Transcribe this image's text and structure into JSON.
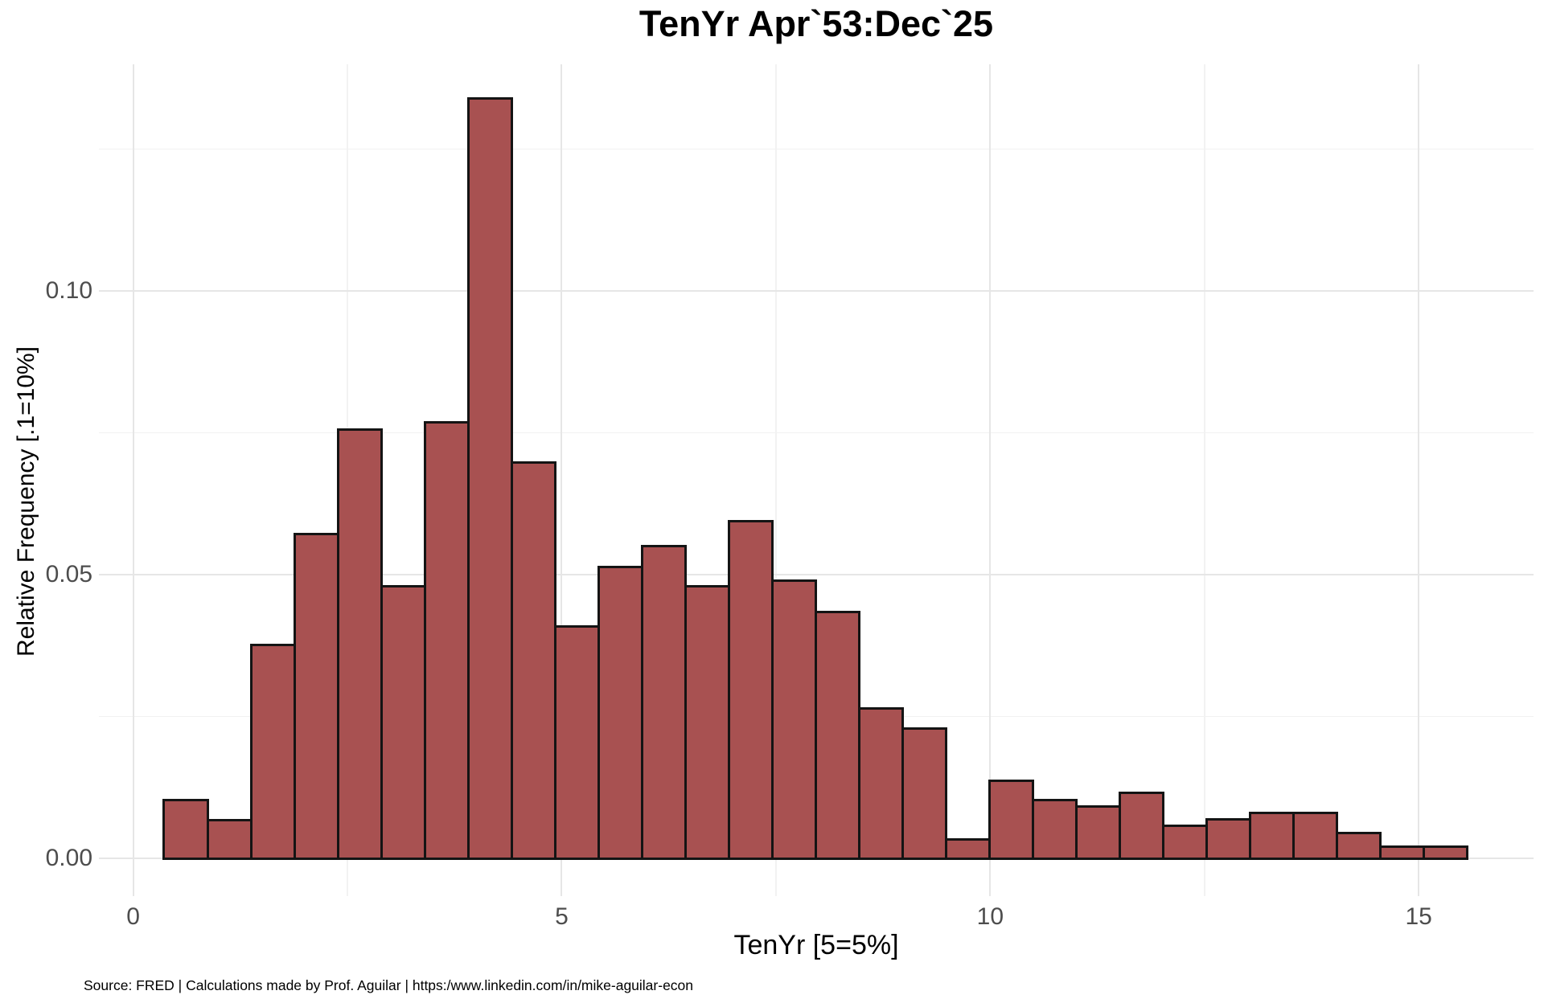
{
  "chart_data": {
    "type": "bar",
    "subtype": "histogram",
    "title": "TenYr Apr`53:Dec`25",
    "xlabel": "TenYr [5=5%]",
    "ylabel": "Relative Frequency [.1=10%]",
    "caption": "Source: FRED | Calculations made by Prof. Aguilar | https:/www.linkedin.com/in/mike-aguilar-econ",
    "bin_start": 0.36,
    "bin_width": 0.507,
    "frequencies": [
      0.0103,
      0.0067,
      0.0376,
      0.0571,
      0.0756,
      0.048,
      0.0768,
      0.134,
      0.0697,
      0.0409,
      0.0514,
      0.055,
      0.048,
      0.0594,
      0.049,
      0.0434,
      0.0264,
      0.0229,
      0.0033,
      0.0137,
      0.0103,
      0.0092,
      0.0115,
      0.0057,
      0.0069,
      0.008,
      0.008,
      0.0044,
      0.0021,
      0.0021
    ],
    "x_ticks": [
      {
        "value": 0,
        "label": "0"
      },
      {
        "value": 5,
        "label": "5"
      },
      {
        "value": 10,
        "label": "10"
      },
      {
        "value": 15,
        "label": "15"
      }
    ],
    "y_ticks": [
      {
        "value": 0.0,
        "label": "0.00"
      },
      {
        "value": 0.05,
        "label": "0.05"
      },
      {
        "value": 0.1,
        "label": "0.10"
      }
    ],
    "x_minor_gridlines": [
      2.5,
      7.5,
      12.5
    ],
    "y_minor_gridlines": [
      0.025,
      0.075,
      0.125
    ],
    "x_axis_range": [
      -0.4,
      16.34
    ],
    "y_axis_range": [
      -0.00665,
      0.13995
    ],
    "legend": "none",
    "grid": "on",
    "colors": {
      "bar_fill": "#a85151",
      "bar_border": "#141414",
      "grid_major": "#e6e6e6",
      "grid_minor": "#f2f2f2",
      "tick_text": "#4d4d4d",
      "title_text": "#000000",
      "background": "#ffffff"
    }
  }
}
